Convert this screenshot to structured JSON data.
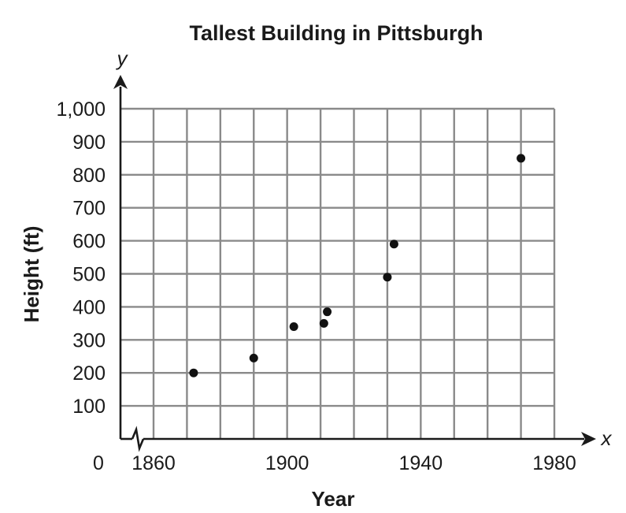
{
  "chart_data": {
    "type": "scatter",
    "title": "Tallest Building in Pittsburgh",
    "xlabel": "Year",
    "ylabel": "Height (ft)",
    "x_axis_var": "x",
    "y_axis_var": "y",
    "origin_label": "0",
    "xlim": [
      1860,
      1980
    ],
    "ylim": [
      0,
      1000
    ],
    "x_ticks": [
      1860,
      1900,
      1940,
      1980
    ],
    "x_tick_labels": [
      "1860",
      "1900",
      "1940",
      "1980"
    ],
    "y_ticks": [
      100,
      200,
      300,
      400,
      500,
      600,
      700,
      800,
      900,
      1000
    ],
    "y_tick_labels": [
      "100",
      "200",
      "300",
      "400",
      "500",
      "600",
      "700",
      "800",
      "900",
      "1,000"
    ],
    "x_gridline_step": 10,
    "y_gridline_step": 100,
    "x_axis_break": true,
    "grid": true,
    "points": [
      {
        "x": 1872,
        "y": 200
      },
      {
        "x": 1890,
        "y": 245
      },
      {
        "x": 1902,
        "y": 340
      },
      {
        "x": 1911,
        "y": 350
      },
      {
        "x": 1912,
        "y": 385
      },
      {
        "x": 1930,
        "y": 490
      },
      {
        "x": 1932,
        "y": 590
      },
      {
        "x": 1970,
        "y": 850
      }
    ],
    "point_color": "#111111",
    "grid_color": "#8a8a8a",
    "axis_color": "#1a1a1a"
  }
}
